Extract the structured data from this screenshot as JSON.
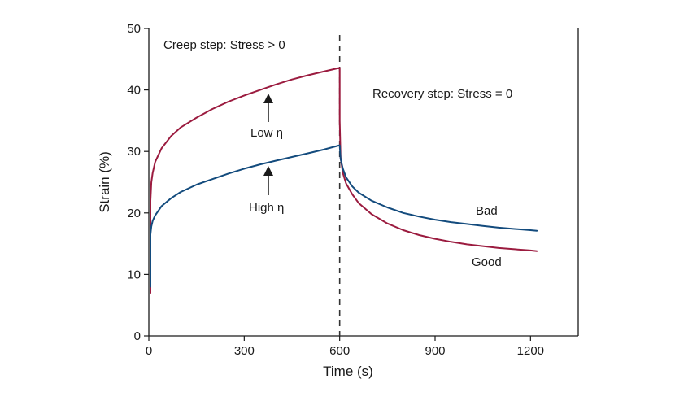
{
  "chart_data": {
    "type": "line",
    "xlabel": "Time (s)",
    "ylabel": "Strain (%)",
    "xlim": [
      0,
      1350
    ],
    "ylim": [
      0,
      50
    ],
    "xticks": [
      0,
      300,
      600,
      900,
      1200
    ],
    "yticks": [
      0,
      10,
      20,
      30,
      40,
      50
    ],
    "grid": false,
    "divider": {
      "x": 600,
      "style": "dashed"
    },
    "colors": {
      "red": "#9b1b3f",
      "blue": "#134b7d"
    },
    "annotations": {
      "creep": "Creep step: Stress > 0",
      "recovery": "Recovery step: Stress = 0",
      "low_eta": "Low η",
      "high_eta": "High η",
      "bad": "Bad",
      "good": "Good"
    },
    "series": [
      {
        "color": "#9b1b3f",
        "x": [
          5,
          5,
          8,
          12,
          20,
          40,
          70,
          100,
          150,
          200,
          250,
          300,
          350,
          400,
          450,
          500,
          550,
          600,
          600,
          603,
          610,
          620,
          640,
          660,
          700,
          750,
          800,
          850,
          900,
          950,
          1000,
          1050,
          1100,
          1150,
          1200,
          1220
        ],
        "y": [
          7,
          22,
          25,
          26.5,
          28.3,
          30.5,
          32.5,
          33.9,
          35.5,
          36.9,
          38.1,
          39.1,
          40.0,
          40.9,
          41.7,
          42.4,
          43.0,
          43.6,
          35.0,
          29.0,
          26.5,
          24.8,
          23.0,
          21.6,
          19.8,
          18.3,
          17.2,
          16.4,
          15.8,
          15.3,
          14.9,
          14.6,
          14.3,
          14.1,
          13.9,
          13.8
        ]
      },
      {
        "color": "#134b7d",
        "x": [
          5,
          5,
          8,
          12,
          20,
          40,
          70,
          100,
          150,
          200,
          250,
          300,
          350,
          400,
          450,
          500,
          550,
          600,
          603,
          610,
          620,
          640,
          660,
          700,
          750,
          800,
          850,
          900,
          950,
          1000,
          1050,
          1100,
          1150,
          1200,
          1220
        ],
        "y": [
          8,
          16.5,
          17.8,
          18.7,
          19.6,
          21.1,
          22.4,
          23.4,
          24.6,
          25.5,
          26.4,
          27.2,
          27.9,
          28.5,
          29.1,
          29.7,
          30.3,
          31.0,
          28.8,
          27.2,
          25.8,
          24.3,
          23.3,
          22.0,
          20.9,
          20.0,
          19.4,
          18.9,
          18.5,
          18.2,
          17.9,
          17.6,
          17.4,
          17.2,
          17.1
        ]
      }
    ]
  }
}
